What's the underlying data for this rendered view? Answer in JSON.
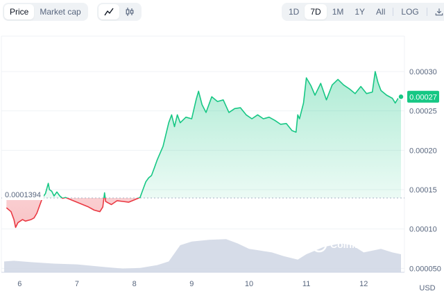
{
  "toolbar": {
    "metric_tabs": [
      "Price",
      "Market cap"
    ],
    "active_metric": "Price",
    "chart_type_icons": [
      "line-chart-icon",
      "candlestick-icon"
    ],
    "active_chart_type": "line-chart-icon",
    "ranges": [
      "1D",
      "7D",
      "1M",
      "1Y",
      "All"
    ],
    "active_range": "7D",
    "scale_toggle": "LOG",
    "download_icon": "download-icon"
  },
  "reference_price_label": "0.0001394",
  "current_price_label": "0.00027",
  "currency_label": "USD",
  "watermark": "CoinMarketCap",
  "colors": {
    "up": "#16c784",
    "down": "#ea3943",
    "volume": "#cfd6e4",
    "accent_bg": "#eff2f5"
  },
  "chart_data": {
    "type": "line",
    "title": "",
    "xlabel": "",
    "ylabel": "",
    "y_unit": "USD",
    "x_ticks": [
      "6",
      "7",
      "8",
      "9",
      "10",
      "11",
      "12"
    ],
    "y_ticks": [
      "0.000050",
      "0.00010",
      "0.00015",
      "0.00020",
      "0.00025",
      "0.00030"
    ],
    "x_range": [
      5.73,
      12.65
    ],
    "y_range": [
      4.5e-05,
      0.000345
    ],
    "baseline": 0.0001394,
    "grid": true,
    "legend": "none",
    "price_series": {
      "name": "",
      "x": [
        5.77,
        5.85,
        5.9,
        5.93,
        5.97,
        6.05,
        6.1,
        6.2,
        6.25,
        6.3,
        6.35,
        6.4,
        6.45,
        6.5,
        6.52,
        6.56,
        6.6,
        6.65,
        6.7,
        6.75,
        6.8,
        6.9,
        7.0,
        7.1,
        7.2,
        7.3,
        7.4,
        7.45,
        7.48,
        7.5,
        7.55,
        7.6,
        7.7,
        7.8,
        7.9,
        8.0,
        8.1,
        8.15,
        8.2,
        8.25,
        8.3,
        8.35,
        8.4,
        8.5,
        8.6,
        8.65,
        8.7,
        8.75,
        8.8,
        8.9,
        9.0,
        9.08,
        9.12,
        9.18,
        9.25,
        9.35,
        9.45,
        9.55,
        9.65,
        9.75,
        9.85,
        9.95,
        10.05,
        10.15,
        10.25,
        10.35,
        10.45,
        10.55,
        10.65,
        10.75,
        10.82,
        10.85,
        10.88,
        10.95,
        11.0,
        11.08,
        11.15,
        11.25,
        11.35,
        11.45,
        11.55,
        11.65,
        11.75,
        11.85,
        11.95,
        12.05,
        12.15,
        12.2,
        12.25,
        12.3,
        12.4,
        12.5,
        12.55,
        12.6,
        12.65
      ],
      "y": [
        0.000127,
        0.000122,
        0.000112,
        0.000102,
        0.000108,
        0.000112,
        0.00011,
        0.000112,
        0.000114,
        0.00012,
        0.00013,
        0.00014,
        0.000145,
        0.000158,
        0.00015,
        0.000148,
        0.000142,
        0.000147,
        0.000142,
        0.000139,
        0.00014,
        0.000137,
        0.000134,
        0.000131,
        0.000128,
        0.000124,
        0.000122,
        0.000128,
        0.000146,
        0.000135,
        0.000133,
        0.000131,
        0.000136,
        0.000135,
        0.000134,
        0.000137,
        0.00014,
        0.00015,
        0.00016,
        0.000165,
        0.000168,
        0.000178,
        0.000188,
        0.000205,
        0.000235,
        0.000245,
        0.00023,
        0.000245,
        0.000235,
        0.000242,
        0.00024,
        0.000265,
        0.000275,
        0.000258,
        0.000248,
        0.000268,
        0.000262,
        0.000264,
        0.000248,
        0.000253,
        0.000254,
        0.000245,
        0.00024,
        0.000245,
        0.00024,
        0.000242,
        0.000238,
        0.000233,
        0.000234,
        0.000225,
        0.000223,
        0.000245,
        0.00024,
        0.00026,
        0.000292,
        0.000282,
        0.00027,
        0.000285,
        0.000264,
        0.000283,
        0.00029,
        0.000283,
        0.000278,
        0.000272,
        0.000281,
        0.000272,
        0.000274,
        0.0003,
        0.000286,
        0.000276,
        0.00027,
        0.000266,
        0.00026,
        0.000266,
        0.000268
      ]
    },
    "volume_series": {
      "x": [
        5.73,
        5.9,
        6.2,
        6.6,
        7.0,
        7.4,
        7.8,
        8.1,
        8.4,
        8.6,
        8.8,
        9.0,
        9.3,
        9.6,
        9.8,
        10.0,
        10.2,
        10.4,
        10.6,
        10.85,
        11.0,
        11.3,
        11.6,
        11.8,
        12.0,
        12.3,
        12.5,
        12.65
      ],
      "y": [
        0.3,
        0.32,
        0.28,
        0.24,
        0.22,
        0.16,
        0.1,
        0.12,
        0.2,
        0.3,
        0.75,
        0.85,
        0.9,
        0.92,
        0.8,
        0.65,
        0.6,
        0.55,
        0.45,
        0.35,
        0.5,
        0.7,
        0.8,
        0.75,
        0.55,
        0.65,
        0.55,
        0.5
      ]
    }
  }
}
